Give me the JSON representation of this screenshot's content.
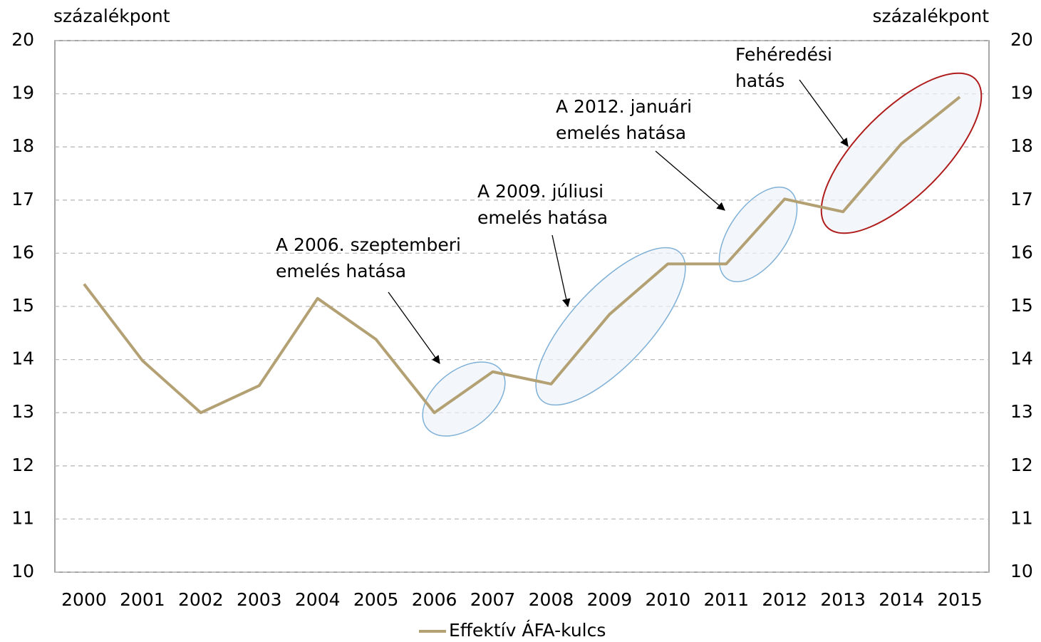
{
  "chart_data": {
    "type": "line",
    "ylabel": "százalékpont",
    "y2label": "százalékpont",
    "categories": [
      "2000",
      "2001",
      "2002",
      "2003",
      "2004",
      "2005",
      "2006",
      "2007",
      "2008",
      "2009",
      "2010",
      "2011",
      "2012",
      "2013",
      "2014",
      "2015"
    ],
    "series": [
      {
        "name": "Effektív ÁFA-kulcs",
        "color": "#b3a174",
        "values": [
          15.42,
          13.98,
          13.0,
          13.51,
          15.15,
          14.38,
          13.0,
          13.77,
          13.54,
          14.85,
          15.8,
          15.8,
          17.02,
          16.78,
          18.06,
          18.94
        ]
      }
    ],
    "ylim": [
      10,
      20
    ],
    "yticks": [
      10,
      11,
      12,
      13,
      14,
      15,
      16,
      17,
      18,
      19,
      20
    ],
    "y2lim": [
      10,
      20
    ],
    "y2ticks": [
      10,
      11,
      12,
      13,
      14,
      15,
      16,
      17,
      18,
      19,
      20
    ],
    "grid": true,
    "legend": "bottom",
    "annotations": [
      {
        "lines": [
          "A 2006. szeptemberi",
          "emelés hatása"
        ],
        "color": "#000000"
      },
      {
        "lines": [
          "A 2009. júliusi",
          "emelés hatása"
        ],
        "color": "#000000"
      },
      {
        "lines": [
          "A 2012. januári",
          "emelés hatása"
        ],
        "color": "#000000"
      },
      {
        "lines": [
          "Fehéredési",
          "hatás"
        ],
        "color": "#a01c1c"
      }
    ]
  }
}
